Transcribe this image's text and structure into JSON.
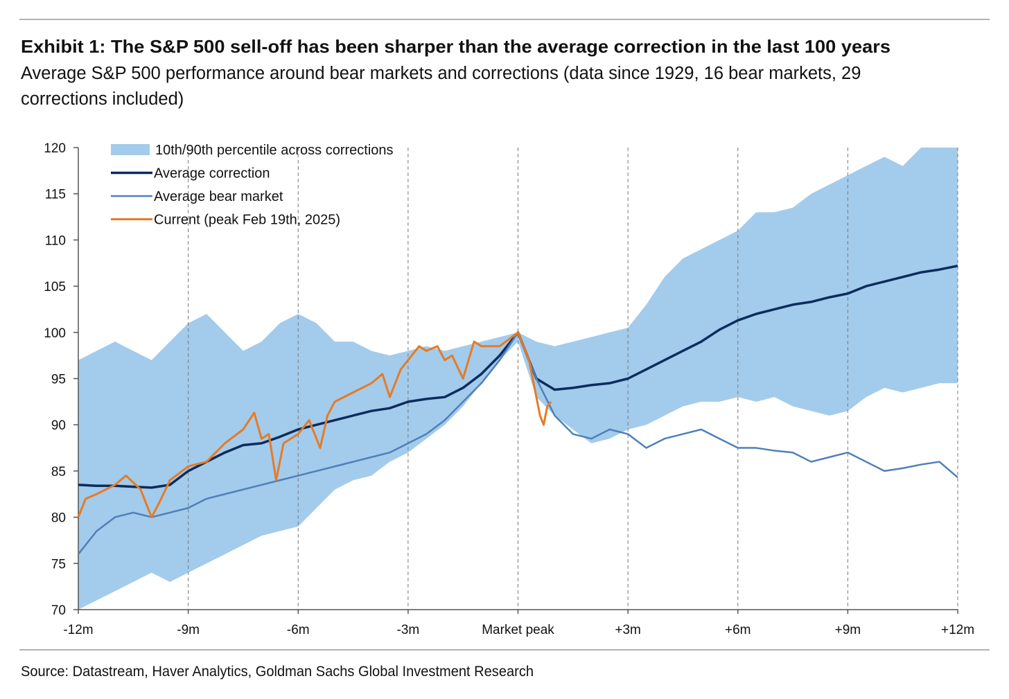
{
  "chart_data": {
    "type": "line",
    "title": "Exhibit 1: The S&P 500 sell-off has been sharper than the average correction in the last 100 years",
    "subtitle": "Average S&P 500 performance around bear markets and corrections (data since 1929, 16 bear markets, 29 corrections included)",
    "source": "Source: Datastream, Haver Analytics, Goldman Sachs Global Investment Research",
    "x": [
      -12,
      -11.5,
      -11,
      -10.5,
      -10,
      -9.5,
      -9,
      -8.5,
      -8,
      -7.5,
      -7,
      -6.5,
      -6,
      -5.5,
      -5,
      -4.5,
      -4,
      -3.5,
      -3,
      -2.5,
      -2,
      -1.5,
      -1,
      -0.5,
      0,
      0.5,
      1,
      1.5,
      2,
      2.5,
      3,
      3.5,
      4,
      4.5,
      5,
      5.5,
      6,
      6.5,
      7,
      7.5,
      8,
      8.5,
      9,
      9.5,
      10,
      10.5,
      11,
      11.5,
      12
    ],
    "band": {
      "name": "10th/90th percentile across corrections",
      "color": "#a3cbeb",
      "upper": [
        97,
        98,
        99,
        98,
        97,
        99,
        101,
        102,
        100,
        98,
        99,
        101,
        102,
        101,
        99,
        99,
        98,
        97.5,
        98,
        98.5,
        98,
        98.5,
        99,
        99.5,
        100,
        99,
        98.5,
        99,
        99.5,
        100,
        100.5,
        103,
        106,
        108,
        109,
        110,
        111,
        113,
        113,
        113.5,
        115,
        116,
        117,
        118,
        119,
        118,
        120,
        120,
        120
      ],
      "lower": [
        70,
        71,
        72,
        73,
        74,
        73,
        74,
        75,
        76,
        77,
        78,
        78.5,
        79,
        81,
        83,
        84,
        84.5,
        86,
        87,
        88.5,
        90,
        92,
        94.5,
        97,
        99,
        93,
        91,
        89.5,
        88,
        88.5,
        89.5,
        90,
        91,
        92,
        92.5,
        92.5,
        93,
        92.5,
        93,
        92,
        91.5,
        91,
        91.5,
        93,
        94,
        93.5,
        94,
        94.5,
        94.5
      ]
    },
    "series": [
      {
        "name": "Average correction",
        "color": "#0c2c5c",
        "values": [
          83.5,
          83.4,
          83.4,
          83.3,
          83.2,
          83.5,
          85,
          86,
          87,
          87.8,
          88,
          88.7,
          89.5,
          90,
          90.5,
          91,
          91.5,
          91.8,
          92.5,
          92.8,
          93,
          94,
          95.5,
          97.5,
          100,
          95,
          93.8,
          94,
          94.3,
          94.5,
          95,
          96,
          97,
          98,
          99,
          100.3,
          101.3,
          102,
          102.5,
          103,
          103.3,
          103.8,
          104.2,
          105,
          105.5,
          106,
          106.5,
          106.8,
          107.2
        ]
      },
      {
        "name": "Average bear market",
        "color": "#4f7fb9",
        "values": [
          76,
          78.5,
          80,
          80.5,
          80,
          80.5,
          81,
          82,
          82.5,
          83,
          83.5,
          84,
          84.5,
          85,
          85.5,
          86,
          86.5,
          87,
          88,
          89,
          90.5,
          92.5,
          94.5,
          97,
          100,
          95,
          91,
          89,
          88.5,
          89.5,
          89,
          87.5,
          88.5,
          89,
          89.5,
          88.5,
          87.5,
          87.5,
          87.2,
          87,
          86,
          86.5,
          87,
          86,
          85,
          85.3,
          85.7,
          86,
          84.3
        ]
      },
      {
        "name": "Current (peak Feb 19th, 2025)",
        "color": "#e57b26",
        "x": [
          -12,
          -11.8,
          -11.5,
          -11,
          -10.7,
          -10.3,
          -10,
          -9.8,
          -9.5,
          -9,
          -8.5,
          -8,
          -7.5,
          -7.2,
          -7,
          -6.8,
          -6.6,
          -6.4,
          -6,
          -5.7,
          -5.4,
          -5.2,
          -5,
          -4.5,
          -4,
          -3.7,
          -3.5,
          -3.2,
          -3,
          -2.7,
          -2.5,
          -2.2,
          -2,
          -1.8,
          -1.5,
          -1.2,
          -1,
          -0.5,
          0,
          0.3,
          0.45,
          0.6,
          0.7,
          0.8,
          0.9
        ],
        "values": [
          80,
          82,
          82.5,
          83.5,
          84.5,
          83,
          80,
          81.5,
          84,
          85.5,
          86,
          88,
          89.5,
          91.3,
          88.5,
          89,
          84,
          88,
          89,
          90.5,
          87.5,
          91,
          92.5,
          93.5,
          94.5,
          95.5,
          93,
          96,
          97,
          98.5,
          98,
          98.5,
          97,
          97.5,
          95,
          99,
          98.5,
          98.5,
          100,
          97,
          94,
          91,
          90,
          92,
          92.5
        ]
      }
    ],
    "xlim": [
      -12,
      12
    ],
    "xticks": [
      {
        "value": -12,
        "label": "-12m"
      },
      {
        "value": -9,
        "label": "-9m"
      },
      {
        "value": -6,
        "label": "-6m"
      },
      {
        "value": -3,
        "label": "-3m"
      },
      {
        "value": 0,
        "label": "Market peak"
      },
      {
        "value": 3,
        "label": "+3m"
      },
      {
        "value": 6,
        "label": "+6m"
      },
      {
        "value": 9,
        "label": "+9m"
      },
      {
        "value": 12,
        "label": "+12m"
      }
    ],
    "ylim": [
      70,
      120
    ],
    "yticks": [
      70,
      75,
      80,
      85,
      90,
      95,
      100,
      105,
      110,
      115,
      120
    ],
    "grid": "x",
    "legend": "upper left"
  }
}
